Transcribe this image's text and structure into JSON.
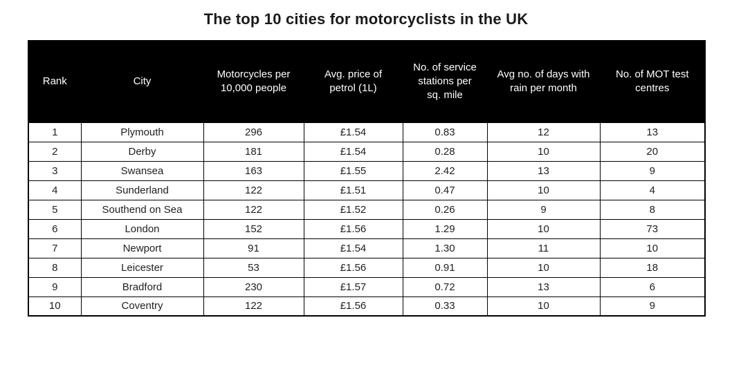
{
  "title": "The top 10 cities for motorcyclists in the UK",
  "colors": {
    "header_background": "#000000",
    "header_text": "#ffffff",
    "body_text": "#212121",
    "border": "#000000",
    "page_background": "#ffffff",
    "title_text": "#1a1a1a"
  },
  "chart_data": {
    "type": "table",
    "title": "The top 10 cities for motorcyclists in the UK",
    "columns": [
      "Rank",
      "City",
      "Motorcycles per 10,000 people",
      "Avg. price of petrol (1L)",
      "No. of service stations per sq. mile",
      "Avg no. of days with rain per month",
      "No. of MOT test centres"
    ],
    "rows": [
      [
        "1",
        "Plymouth",
        "296",
        "£1.54",
        "0.83",
        "12",
        "13"
      ],
      [
        "2",
        "Derby",
        "181",
        "£1.54",
        "0.28",
        "10",
        "20"
      ],
      [
        "3",
        "Swansea",
        "163",
        "£1.55",
        "2.42",
        "13",
        "9"
      ],
      [
        "4",
        "Sunderland",
        "122",
        "£1.51",
        "0.47",
        "10",
        "4"
      ],
      [
        "5",
        "Southend on Sea",
        "122",
        "£1.52",
        "0.26",
        "9",
        "8"
      ],
      [
        "6",
        "London",
        "152",
        "£1.56",
        "1.29",
        "10",
        "73"
      ],
      [
        "7",
        "Newport",
        "91",
        "£1.54",
        "1.30",
        "11",
        "10"
      ],
      [
        "8",
        "Leicester",
        "53",
        "£1.56",
        "0.91",
        "10",
        "18"
      ],
      [
        "9",
        "Bradford",
        "230",
        "£1.57",
        "0.72",
        "13",
        "6"
      ],
      [
        "10",
        "Coventry",
        "122",
        "£1.56",
        "0.33",
        "10",
        "9"
      ]
    ],
    "layout": {
      "header_bg": "#000000",
      "grid": true,
      "column_alignment": "center"
    }
  }
}
